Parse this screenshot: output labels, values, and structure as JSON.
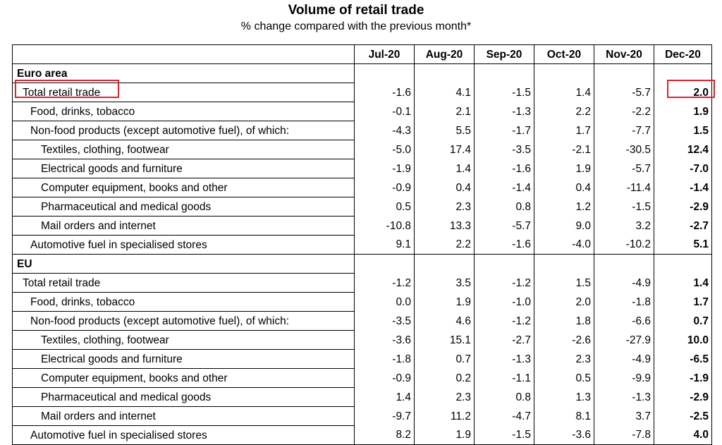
{
  "title": "Volume of retail trade",
  "subtitle": "% change compared with the previous month*",
  "columns": [
    "Jul-20",
    "Aug-20",
    "Sep-20",
    "Oct-20",
    "Nov-20",
    "Dec-20"
  ],
  "colors": {
    "highlight": "#d9252b"
  },
  "groups": [
    {
      "name": "Euro area",
      "rows": [
        {
          "label": "Total retail trade",
          "values": [
            "-1.6",
            "4.1",
            "-1.5",
            "1.4",
            "-5.7",
            "2.0"
          ]
        },
        {
          "label": "Food, drinks, tobacco",
          "values": [
            "-0.1",
            "2.1",
            "-1.3",
            "2.2",
            "-2.2",
            "1.9"
          ]
        },
        {
          "label": "Non-food products (except automotive fuel), of which:",
          "values": [
            "-4.3",
            "5.5",
            "-1.7",
            "1.7",
            "-7.7",
            "1.5"
          ]
        },
        {
          "label": "Textiles, clothing, footwear",
          "values": [
            "-5.0",
            "17.4",
            "-3.5",
            "-2.1",
            "-30.5",
            "12.4"
          ]
        },
        {
          "label": "Electrical goods and furniture",
          "values": [
            "-1.9",
            "1.4",
            "-1.6",
            "1.9",
            "-5.7",
            "-7.0"
          ]
        },
        {
          "label": "Computer equipment, books and other",
          "values": [
            "-0.9",
            "0.4",
            "-1.4",
            "0.4",
            "-11.4",
            "-1.4"
          ]
        },
        {
          "label": "Pharmaceutical and medical goods",
          "values": [
            "0.5",
            "2.3",
            "0.8",
            "1.2",
            "-1.5",
            "-2.9"
          ]
        },
        {
          "label": "Mail orders and internet",
          "values": [
            "-10.8",
            "13.3",
            "-5.7",
            "9.0",
            "3.2",
            "-2.7"
          ]
        },
        {
          "label": "Automotive fuel in specialised stores",
          "values": [
            "9.1",
            "2.2",
            "-1.6",
            "-4.0",
            "-10.2",
            "5.1"
          ]
        }
      ]
    },
    {
      "name": "EU",
      "rows": [
        {
          "label": "Total retail trade",
          "values": [
            "-1.2",
            "3.5",
            "-1.2",
            "1.5",
            "-4.9",
            "1.4"
          ]
        },
        {
          "label": "Food, drinks, tobacco",
          "values": [
            "0.0",
            "1.9",
            "-1.0",
            "2.0",
            "-1.8",
            "1.7"
          ]
        },
        {
          "label": "Non-food products (except automotive fuel), of which:",
          "values": [
            "-3.5",
            "4.6",
            "-1.2",
            "1.8",
            "-6.6",
            "0.7"
          ]
        },
        {
          "label": "Textiles, clothing, footwear",
          "values": [
            "-3.6",
            "15.1",
            "-2.7",
            "-2.6",
            "-27.9",
            "10.0"
          ]
        },
        {
          "label": "Electrical goods and furniture",
          "values": [
            "-1.8",
            "0.7",
            "-1.3",
            "2.3",
            "-4.9",
            "-6.5"
          ]
        },
        {
          "label": "Computer equipment, books and other",
          "values": [
            "-0.9",
            "0.2",
            "-1.1",
            "0.5",
            "-9.9",
            "-1.9"
          ]
        },
        {
          "label": "Pharmaceutical and medical goods",
          "values": [
            "1.4",
            "2.3",
            "0.8",
            "1.3",
            "-1.3",
            "-2.9"
          ]
        },
        {
          "label": "Mail orders and internet",
          "values": [
            "-9.7",
            "11.2",
            "-4.7",
            "8.1",
            "3.7",
            "-2.5"
          ]
        },
        {
          "label": "Automotive fuel in specialised stores",
          "values": [
            "8.2",
            "1.9",
            "-1.5",
            "-3.6",
            "-7.8",
            "4.0"
          ]
        }
      ]
    }
  ]
}
